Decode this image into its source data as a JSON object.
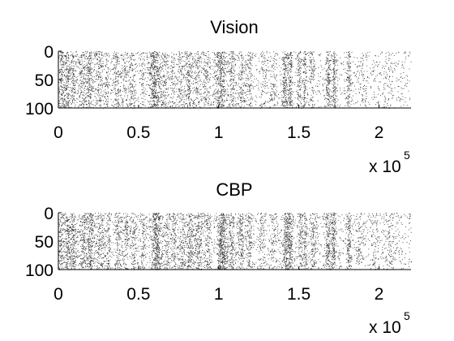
{
  "chart_data": [
    {
      "type": "scatter",
      "title": "Vision",
      "xlabel": "",
      "ylabel": "",
      "xlim": [
        0,
        220000
      ],
      "ylim": [
        0,
        100
      ],
      "y_reversed": true,
      "x_ticks": [
        0,
        50000,
        100000,
        150000,
        200000
      ],
      "x_tick_labels": [
        "0",
        "0.5",
        "1",
        "1.5",
        "2"
      ],
      "y_ticks": [
        0,
        50,
        100
      ],
      "y_tick_labels": [
        "0",
        "50",
        "100"
      ],
      "x_multiplier_label": "x 10",
      "x_multiplier_exponent": "5",
      "grid": false,
      "marker_color": "#333333",
      "raster": {
        "background_density": 0.06,
        "bursts": [
          {
            "x": 2000,
            "w": 2000,
            "d": 0.4
          },
          {
            "x": 5500,
            "w": 1500,
            "d": 0.55
          },
          {
            "x": 9000,
            "w": 1200,
            "d": 0.45
          },
          {
            "x": 15000,
            "w": 3000,
            "d": 0.35
          },
          {
            "x": 19500,
            "w": 1600,
            "d": 0.5
          },
          {
            "x": 25000,
            "w": 2500,
            "d": 0.3
          },
          {
            "x": 30000,
            "w": 1200,
            "d": 0.3
          },
          {
            "x": 36500,
            "w": 2000,
            "d": 0.35
          },
          {
            "x": 41500,
            "w": 1500,
            "d": 0.28
          },
          {
            "x": 46000,
            "w": 2000,
            "d": 0.25
          },
          {
            "x": 52000,
            "w": 1500,
            "d": 0.25
          },
          {
            "x": 60000,
            "w": 3000,
            "d": 0.65
          },
          {
            "x": 66000,
            "w": 2000,
            "d": 0.3
          },
          {
            "x": 71000,
            "w": 1500,
            "d": 0.25
          },
          {
            "x": 76000,
            "w": 2000,
            "d": 0.3
          },
          {
            "x": 81000,
            "w": 1800,
            "d": 0.4
          },
          {
            "x": 86000,
            "w": 2500,
            "d": 0.3
          },
          {
            "x": 92000,
            "w": 2000,
            "d": 0.3
          },
          {
            "x": 101000,
            "w": 3000,
            "d": 0.6
          },
          {
            "x": 108000,
            "w": 1800,
            "d": 0.35
          },
          {
            "x": 114000,
            "w": 2000,
            "d": 0.3
          },
          {
            "x": 119000,
            "w": 1500,
            "d": 0.3
          },
          {
            "x": 128000,
            "w": 2000,
            "d": 0.2
          },
          {
            "x": 134000,
            "w": 2000,
            "d": 0.2
          },
          {
            "x": 141000,
            "w": 1500,
            "d": 0.6
          },
          {
            "x": 144500,
            "w": 1200,
            "d": 0.55
          },
          {
            "x": 150000,
            "w": 1200,
            "d": 0.45
          },
          {
            "x": 153500,
            "w": 1000,
            "d": 0.45
          },
          {
            "x": 158000,
            "w": 1500,
            "d": 0.3
          },
          {
            "x": 168000,
            "w": 1500,
            "d": 0.55
          },
          {
            "x": 172000,
            "w": 1000,
            "d": 0.7
          },
          {
            "x": 181000,
            "w": 1200,
            "d": 0.45
          },
          {
            "x": 190000,
            "w": 2000,
            "d": 0.15
          },
          {
            "x": 205000,
            "w": 3000,
            "d": 0.12
          }
        ]
      }
    },
    {
      "type": "scatter",
      "title": "CBP",
      "xlabel": "",
      "ylabel": "",
      "xlim": [
        0,
        220000
      ],
      "ylim": [
        0,
        100
      ],
      "y_reversed": true,
      "x_ticks": [
        0,
        50000,
        100000,
        150000,
        200000
      ],
      "x_tick_labels": [
        "0",
        "0.5",
        "1",
        "1.5",
        "2"
      ],
      "y_ticks": [
        0,
        50,
        100
      ],
      "y_tick_labels": [
        "0",
        "50",
        "100"
      ],
      "x_multiplier_label": "x 10",
      "x_multiplier_exponent": "5",
      "grid": false,
      "marker_color": "#333333",
      "raster": {
        "background_density": 0.07,
        "bursts": [
          {
            "x": 1500,
            "w": 2000,
            "d": 0.35
          },
          {
            "x": 5500,
            "w": 1500,
            "d": 0.55
          },
          {
            "x": 9000,
            "w": 1500,
            "d": 0.5
          },
          {
            "x": 15500,
            "w": 2500,
            "d": 0.4
          },
          {
            "x": 20000,
            "w": 1500,
            "d": 0.55
          },
          {
            "x": 26000,
            "w": 2500,
            "d": 0.35
          },
          {
            "x": 31000,
            "w": 1200,
            "d": 0.35
          },
          {
            "x": 37000,
            "w": 2000,
            "d": 0.35
          },
          {
            "x": 42000,
            "w": 1500,
            "d": 0.3
          },
          {
            "x": 47000,
            "w": 2000,
            "d": 0.3
          },
          {
            "x": 53000,
            "w": 1500,
            "d": 0.3
          },
          {
            "x": 61000,
            "w": 2500,
            "d": 0.75
          },
          {
            "x": 67000,
            "w": 2000,
            "d": 0.3
          },
          {
            "x": 72000,
            "w": 1500,
            "d": 0.3
          },
          {
            "x": 77000,
            "w": 2000,
            "d": 0.35
          },
          {
            "x": 82000,
            "w": 1800,
            "d": 0.45
          },
          {
            "x": 87000,
            "w": 2500,
            "d": 0.35
          },
          {
            "x": 93000,
            "w": 2000,
            "d": 0.35
          },
          {
            "x": 102000,
            "w": 2500,
            "d": 0.75
          },
          {
            "x": 108000,
            "w": 1800,
            "d": 0.4
          },
          {
            "x": 114000,
            "w": 2000,
            "d": 0.35
          },
          {
            "x": 119000,
            "w": 1500,
            "d": 0.35
          },
          {
            "x": 127000,
            "w": 2000,
            "d": 0.25
          },
          {
            "x": 134000,
            "w": 2000,
            "d": 0.25
          },
          {
            "x": 142000,
            "w": 1800,
            "d": 0.7
          },
          {
            "x": 145000,
            "w": 1200,
            "d": 0.5
          },
          {
            "x": 151000,
            "w": 1200,
            "d": 0.45
          },
          {
            "x": 154000,
            "w": 1000,
            "d": 0.45
          },
          {
            "x": 159000,
            "w": 1500,
            "d": 0.35
          },
          {
            "x": 168000,
            "w": 1500,
            "d": 0.55
          },
          {
            "x": 171500,
            "w": 1200,
            "d": 0.75
          },
          {
            "x": 181000,
            "w": 1200,
            "d": 0.5
          },
          {
            "x": 188000,
            "w": 2000,
            "d": 0.2
          },
          {
            "x": 197000,
            "w": 2000,
            "d": 0.18
          },
          {
            "x": 206000,
            "w": 3000,
            "d": 0.15
          }
        ]
      }
    }
  ]
}
